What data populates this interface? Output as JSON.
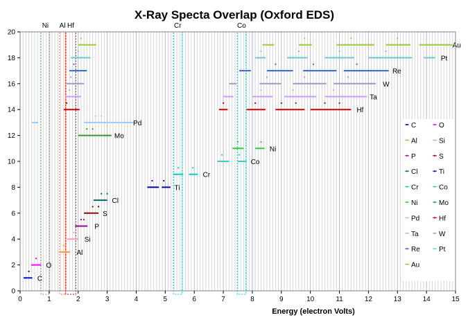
{
  "chart_data": {
    "type": "scatter",
    "title": "X-Ray Specta Overlap (Oxford EDS)",
    "xlabel": "Energy (electron Volts)",
    "ylabel": "",
    "xlim": [
      0,
      15
    ],
    "ylim": [
      0,
      20
    ],
    "x_ticks": [
      "0",
      "1",
      "2",
      "3",
      "4",
      "5",
      "6",
      "7",
      "8",
      "9",
      "10",
      "11",
      "12",
      "13",
      "14",
      "15"
    ],
    "y_ticks": [
      "0",
      "2",
      "4",
      "6",
      "8",
      "10",
      "12",
      "14",
      "16",
      "18",
      "20"
    ],
    "grid": "vertical minor lines every 0.1 eV",
    "overlap_windows": [
      {
        "label": "Ni",
        "range": [
          0.72,
          1.02
        ],
        "color": "#33cc33"
      },
      {
        "label": "Al",
        "range": [
          1.36,
          1.56
        ],
        "color": "#ff6633"
      },
      {
        "label": "Hf",
        "range": [
          1.57,
          1.92
        ],
        "color": "#cc0000"
      },
      {
        "label": "Cr",
        "range": [
          5.28,
          5.58
        ],
        "color": "#00cccc"
      },
      {
        "label": "Co",
        "range": [
          7.48,
          7.78
        ],
        "color": "#00cccc"
      }
    ],
    "series": [
      {
        "name": "C",
        "color": "#0000cc",
        "y": 1,
        "segments": [
          [
            0.12,
            0.42
          ]
        ],
        "dots": [
          [
            0.3,
            1.5
          ]
        ],
        "label_x": 0.5
      },
      {
        "name": "O",
        "color": "#ff00ff",
        "y": 2,
        "segments": [
          [
            0.38,
            0.72
          ]
        ],
        "dots": [
          [
            0.55,
            2.5
          ]
        ],
        "label_x": 0.8
      },
      {
        "name": "Al",
        "color": "#ff9933",
        "y": 3,
        "segments": [
          [
            1.33,
            1.72
          ]
        ],
        "dots": [
          [
            1.5,
            3.5
          ]
        ],
        "label_x": 1.85
      },
      {
        "name": "Si",
        "color": "#ff99cc",
        "y": 4,
        "segments": [
          [
            1.62,
            2.02
          ]
        ],
        "dots": [
          [
            1.85,
            4.5
          ]
        ],
        "label_x": 2.12
      },
      {
        "name": "P",
        "color": "#990099",
        "y": 5,
        "segments": [
          [
            1.9,
            2.32
          ]
        ],
        "dots": [
          [
            2.1,
            5.5
          ],
          [
            2.2,
            5.5
          ]
        ],
        "label_x": 2.47
      },
      {
        "name": "S",
        "color": "#990000",
        "y": 6,
        "segments": [
          [
            2.2,
            2.7
          ]
        ],
        "dots": [
          [
            2.5,
            6.5
          ],
          [
            2.7,
            6.5
          ]
        ],
        "label_x": 2.75
      },
      {
        "name": "Cl",
        "color": "#006666",
        "y": 7,
        "segments": [
          [
            2.53,
            3.0
          ]
        ],
        "dots": [
          [
            2.8,
            7.5
          ],
          [
            3.0,
            7.5
          ]
        ],
        "label_x": 3.07
      },
      {
        "name": "Ti",
        "color": "#000099",
        "y": 8,
        "segments": [
          [
            4.38,
            4.78
          ],
          [
            4.88,
            5.18
          ]
        ],
        "dots": [
          [
            4.55,
            8.5
          ],
          [
            4.95,
            8.5
          ]
        ],
        "label_x": 5.22
      },
      {
        "name": "Cr",
        "color": "#00cccc",
        "y": 9,
        "segments": [
          [
            5.27,
            5.62
          ],
          [
            5.82,
            6.12
          ]
        ],
        "dots": [
          [
            5.45,
            9.5
          ],
          [
            5.95,
            9.5
          ]
        ],
        "label_x": 6.2
      },
      {
        "name": "Co",
        "color": "#33cccc",
        "y": 10,
        "segments": [
          [
            6.8,
            7.2
          ],
          [
            7.5,
            7.8
          ]
        ],
        "dots": [
          [
            6.95,
            10.5
          ],
          [
            7.55,
            10.5
          ]
        ],
        "label_x": 7.85
      },
      {
        "name": "Ni",
        "color": "#33cc33",
        "y": 11,
        "segments": [
          [
            7.32,
            7.7
          ],
          [
            8.1,
            8.42
          ]
        ],
        "dots": [
          [
            7.5,
            11.5
          ],
          [
            8.3,
            11.5
          ]
        ],
        "label_x": 8.5
      },
      {
        "name": "Mo",
        "color": "#339933",
        "y": 12,
        "segments": [
          [
            2.0,
            3.15
          ]
        ],
        "dots": [
          [
            2.3,
            12.5
          ],
          [
            2.5,
            12.5
          ]
        ],
        "label_x": 3.15
      },
      {
        "name": "Pd",
        "color": "#99ccff",
        "y": 13,
        "segments": [
          [
            0.4,
            0.62
          ],
          [
            2.2,
            3.95
          ]
        ],
        "dots": [
          [
            2.6,
            13.5
          ],
          [
            2.8,
            13.5
          ]
        ],
        "label_x": 3.8
      },
      {
        "name": "Hf",
        "color": "#cc0000",
        "y": 14,
        "segments": [
          [
            1.5,
            2.05
          ],
          [
            6.85,
            7.15
          ],
          [
            7.8,
            8.45
          ],
          [
            8.8,
            9.8
          ],
          [
            10.0,
            11.4
          ]
        ],
        "dots": [
          [
            1.6,
            14.5
          ],
          [
            7.0,
            14.5
          ],
          [
            8.1,
            14.5
          ],
          [
            9.0,
            14.5
          ],
          [
            9.5,
            14.5
          ],
          [
            10.5,
            14.5
          ],
          [
            11.0,
            14.5
          ]
        ],
        "label_x": 11.5
      },
      {
        "name": "Ta",
        "color": "#cc99ff",
        "y": 15,
        "segments": [
          [
            1.55,
            2.1
          ],
          [
            7.0,
            7.35
          ],
          [
            8.0,
            8.7
          ],
          [
            9.1,
            10.2
          ],
          [
            10.5,
            11.95
          ]
        ],
        "dots": [
          [
            1.7,
            15.5
          ],
          [
            8.3,
            15.5
          ],
          [
            9.4,
            15.5
          ],
          [
            10.8,
            15.5
          ]
        ],
        "label_x": 11.95
      },
      {
        "name": "W",
        "color": "#9999cc",
        "y": 16,
        "segments": [
          [
            1.6,
            2.2
          ],
          [
            7.2,
            7.45
          ],
          [
            8.25,
            9.0
          ],
          [
            9.4,
            10.55
          ],
          [
            10.8,
            12.25
          ]
        ],
        "dots": [
          [
            1.75,
            16.5
          ],
          [
            8.5,
            16.5
          ],
          [
            9.8,
            16.5
          ],
          [
            11.3,
            16.5
          ]
        ],
        "label_x": 12.4
      },
      {
        "name": "Re",
        "color": "#3366cc",
        "y": 17,
        "segments": [
          [
            1.7,
            2.3
          ],
          [
            7.55,
            7.95
          ],
          [
            8.5,
            9.4
          ],
          [
            9.75,
            10.9
          ],
          [
            11.15,
            12.7
          ]
        ],
        "dots": [
          [
            1.85,
            17.5
          ],
          [
            8.8,
            17.5
          ],
          [
            10.1,
            17.5
          ],
          [
            11.6,
            17.5
          ]
        ],
        "label_x": 12.73
      },
      {
        "name": "Pt",
        "color": "#66cccc",
        "y": 18,
        "segments": [
          [
            1.75,
            2.42
          ],
          [
            8.1,
            8.45
          ],
          [
            9.2,
            9.9
          ],
          [
            10.5,
            11.5
          ],
          [
            12.0,
            13.5
          ],
          [
            13.9,
            14.3
          ]
        ],
        "dots": [
          [
            2.0,
            18.5
          ],
          [
            8.3,
            18.5
          ],
          [
            9.6,
            18.5
          ],
          [
            11.0,
            18.5
          ],
          [
            12.6,
            18.5
          ]
        ],
        "label_x": 14.4
      },
      {
        "name": "Au",
        "color": "#99cc33",
        "y": 19,
        "segments": [
          [
            2.0,
            2.62
          ],
          [
            8.35,
            8.75
          ],
          [
            9.6,
            10.05
          ],
          [
            10.9,
            12.2
          ],
          [
            12.6,
            13.45
          ],
          [
            13.75,
            14.9
          ]
        ],
        "dots": [
          [
            2.1,
            19.5
          ],
          [
            9.8,
            19.5
          ],
          [
            11.4,
            19.5
          ],
          [
            13.0,
            19.5
          ]
        ],
        "label_x": 14.8
      }
    ],
    "legend": {
      "placement": "right",
      "entries": [
        "C",
        "O",
        "Al",
        "Si",
        "P",
        "S",
        "Cl",
        "Ti",
        "Cr",
        "Co",
        "Ni",
        "Mo",
        "Pd",
        "Hf",
        "Ta",
        "W",
        "Re",
        "Pt",
        "Au"
      ]
    }
  }
}
